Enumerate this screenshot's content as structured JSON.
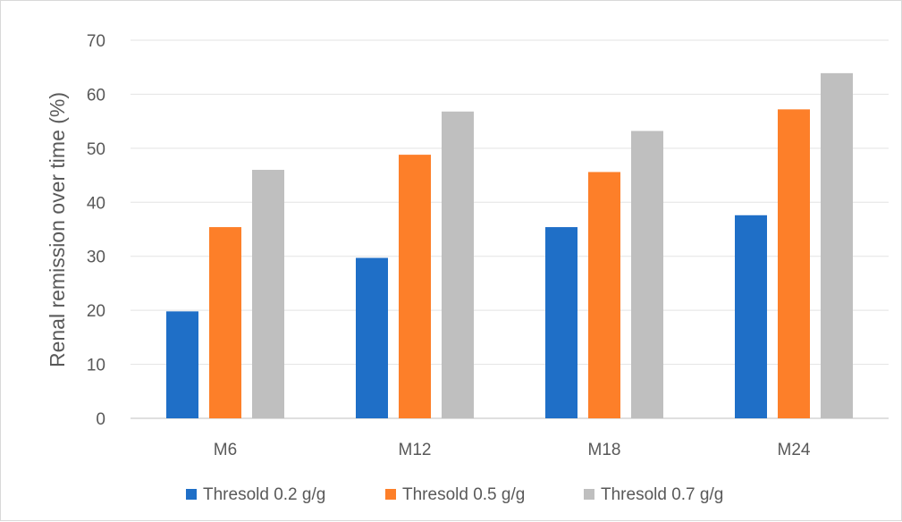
{
  "chart_data": {
    "type": "bar",
    "categories": [
      "M6",
      "M12",
      "M18",
      "M24"
    ],
    "series": [
      {
        "name": "Thresold 0.2 g/g",
        "color": "#1f6fc7",
        "values": [
          19.8,
          29.7,
          35.4,
          37.6
        ]
      },
      {
        "name": "Thresold 0.5 g/g",
        "color": "#fd7f29",
        "values": [
          35.4,
          48.8,
          45.6,
          57.2
        ]
      },
      {
        "name": "Thresold 0.7 g/g",
        "color": "#bfbfbf",
        "values": [
          46.0,
          56.8,
          53.2,
          63.9
        ]
      }
    ],
    "ylabel": "Renal remission over time (%)",
    "xlabel": "",
    "ylim": [
      0,
      70
    ],
    "yticks": [
      0,
      10,
      20,
      30,
      40,
      50,
      60,
      70
    ],
    "grid": true,
    "legend": "bottom"
  }
}
